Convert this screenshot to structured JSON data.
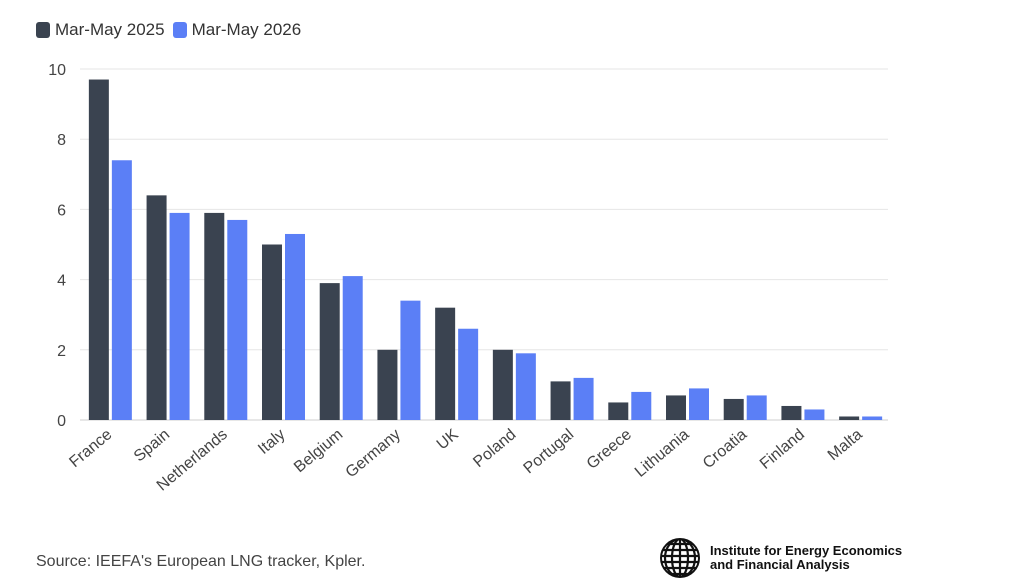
{
  "chart_data": {
    "type": "bar",
    "categories": [
      "France",
      "Spain",
      "Netherlands",
      "Italy",
      "Belgium",
      "Germany",
      "UK",
      "Poland",
      "Portugal",
      "Greece",
      "Lithuania",
      "Croatia",
      "Finland",
      "Malta"
    ],
    "series": [
      {
        "name": "Mar-May 2025",
        "color": "#3a4350",
        "values": [
          9.7,
          6.4,
          5.9,
          5.0,
          3.9,
          2.0,
          3.2,
          2.0,
          1.1,
          0.5,
          0.7,
          0.6,
          0.4,
          0.1
        ]
      },
      {
        "name": "Mar-May 2026",
        "color": "#5b7ff6",
        "values": [
          7.4,
          5.9,
          5.7,
          5.3,
          4.1,
          3.4,
          2.6,
          1.9,
          1.2,
          0.8,
          0.9,
          0.7,
          0.3,
          0.1
        ]
      }
    ],
    "ylim": [
      0,
      10
    ],
    "yticks": [
      0,
      2,
      4,
      6,
      8,
      10
    ],
    "grid": true,
    "legend": "top-left"
  },
  "source": "Source: IEEFA's European LNG tracker, Kpler.",
  "logo": {
    "line1": "Institute for Energy Economics",
    "line2": "and Financial Analysis"
  }
}
